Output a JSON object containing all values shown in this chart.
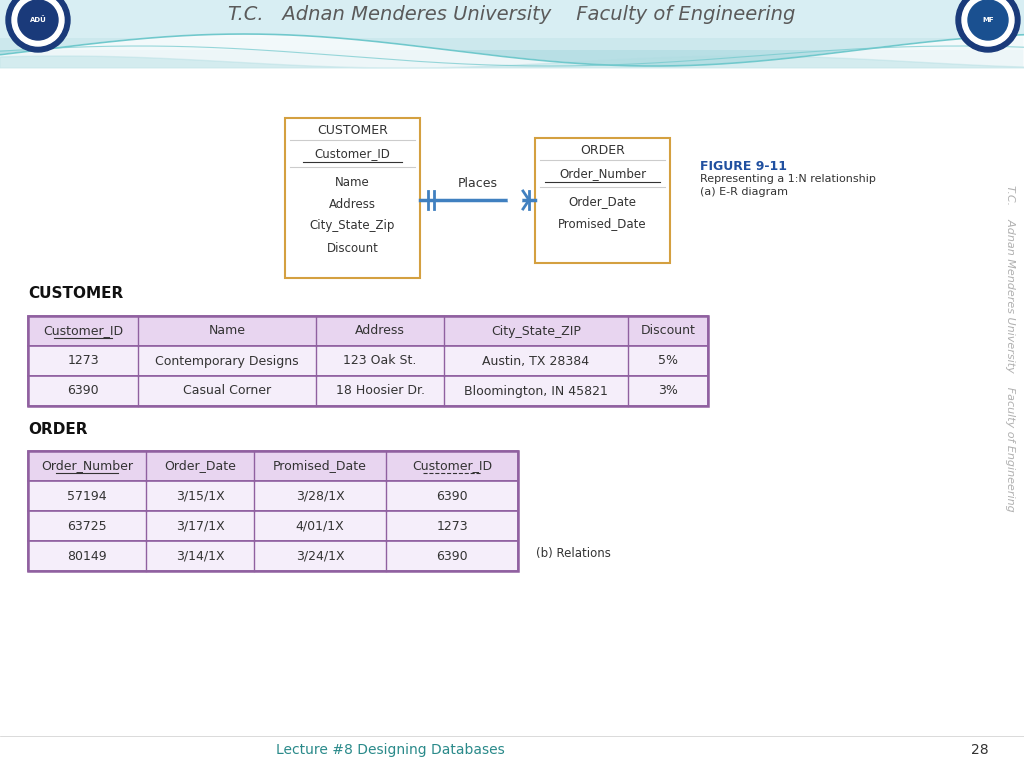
{
  "header_text": "T.C.   Adnan Menderes University    Faculty of Engineering",
  "header_text_color": "#5a5a5a",
  "figure_label": "FIGURE 9-11",
  "figure_desc1": "Representing a 1:N relationship",
  "figure_desc2": "(a) E-R diagram",
  "relation_label": "(b) Relations",
  "customer_entity": {
    "title": "CUSTOMER",
    "pk": "Customer_ID",
    "fields": [
      "Name",
      "Address",
      "City_State_Zip",
      "Discount"
    ]
  },
  "order_entity": {
    "title": "ORDER",
    "pk": "Order_Number",
    "fields": [
      "Order_Date",
      "Promised_Date"
    ]
  },
  "relationship_label": "Places",
  "customer_table_title": "CUSTOMER",
  "customer_headers": [
    "Customer_ID",
    "Name",
    "Address",
    "City_State_ZIP",
    "Discount"
  ],
  "customer_rows": [
    [
      "1273",
      "Contemporary Designs",
      "123 Oak St.",
      "Austin, TX 28384",
      "5%"
    ],
    [
      "6390",
      "Casual Corner",
      "18 Hoosier Dr.",
      "Bloomington, IN 45821",
      "3%"
    ]
  ],
  "order_table_title": "ORDER",
  "order_headers": [
    "Order_Number",
    "Order_Date",
    "Promised_Date",
    "Customer_ID"
  ],
  "order_rows": [
    [
      "57194",
      "3/15/1X",
      "3/28/1X",
      "6390"
    ],
    [
      "63725",
      "3/17/1X",
      "4/01/1X",
      "1273"
    ],
    [
      "80149",
      "3/14/1X",
      "3/24/1X",
      "6390"
    ]
  ],
  "footer_text": "Lecture #8 Designing Databases",
  "footer_page": "28",
  "footer_color": "#2a8a8a",
  "table_header_bg": "#e8d5f0",
  "table_border_color": "#9060a0",
  "table_row_bg": "#f5eefa",
  "entity_box_color": "#d4a040",
  "relationship_color": "#4080c0",
  "figure_label_color": "#2050a0"
}
